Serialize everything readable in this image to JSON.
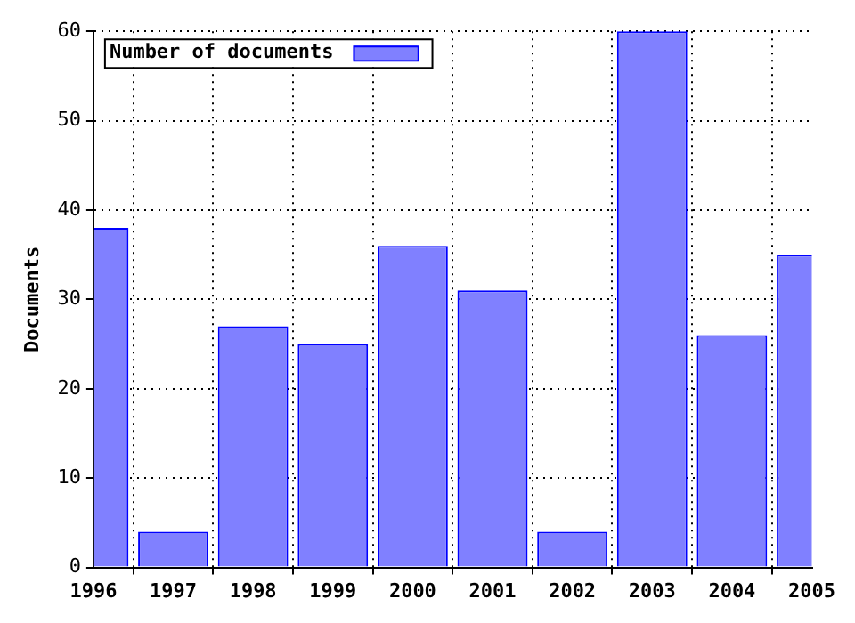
{
  "chart_data": {
    "type": "bar",
    "ylabel": "Documents",
    "categories": [
      "1996",
      "1997",
      "1998",
      "1999",
      "2000",
      "2001",
      "2002",
      "2003",
      "2004",
      "2005"
    ],
    "series": [
      {
        "name": "Number of documents",
        "color": "#8080ff",
        "values": [
          38,
          4,
          27,
          25,
          36,
          31,
          4,
          60,
          26,
          35
        ]
      }
    ],
    "ylim": [
      0,
      60
    ],
    "yticks": [
      0,
      10,
      20,
      30,
      40,
      50,
      60
    ],
    "grid": true,
    "legend": "top left"
  }
}
